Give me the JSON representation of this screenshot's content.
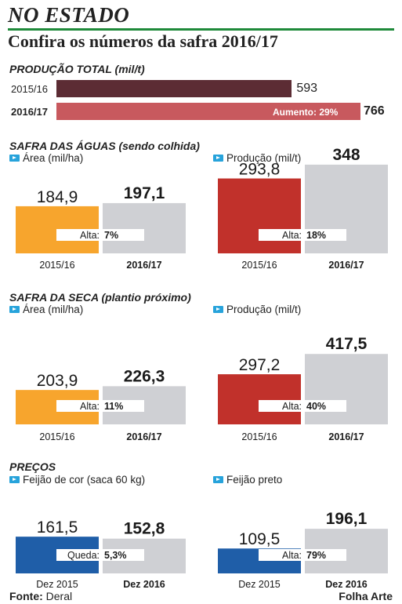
{
  "header": {
    "title": "NO ESTADO",
    "subtitle": "Confira os números da safra 2016/17"
  },
  "colors": {
    "dark_bar": "#5c2c34",
    "red_bar": "#c8595e",
    "orange": "#f7a52d",
    "red": "#c1312b",
    "blue": "#1f5ea8",
    "gray": "#cfd0d4",
    "green_rule": "#1f8a3a",
    "legend_icon": "#27a3db"
  },
  "footer": {
    "source_label": "Fonte:",
    "source_value": "Deral",
    "credit": "Folha Arte"
  },
  "chart_data": [
    {
      "type": "bar",
      "orientation": "horizontal",
      "title": "PRODUÇÃO TOTAL (mil/t)",
      "categories": [
        "2015/16",
        "2016/17"
      ],
      "values": [
        593,
        766
      ],
      "value_labels": [
        "593",
        "766"
      ],
      "annotation": "Aumento: 29%"
    },
    {
      "section_title": "SAFRA DAS ÁGUAS (sendo colhida)",
      "panels": [
        {
          "type": "bar",
          "legend": "Área (mil/ha)",
          "categories": [
            "2015/16",
            "2016/17"
          ],
          "values": [
            184.9,
            197.1
          ],
          "value_labels": [
            "184,9",
            "197,1"
          ],
          "annotation_label": "Alta:",
          "annotation_value": "7%",
          "first_color": "orange"
        },
        {
          "type": "bar",
          "legend": "Produção (mil/t)",
          "categories": [
            "2015/16",
            "2016/17"
          ],
          "values": [
            293.8,
            348
          ],
          "value_labels": [
            "293,8",
            "348"
          ],
          "annotation_label": "Alta:",
          "annotation_value": "18%",
          "first_color": "red"
        }
      ]
    },
    {
      "section_title": "SAFRA DA SECA (plantio próximo)",
      "panels": [
        {
          "type": "bar",
          "legend": "Área (mil/ha)",
          "categories": [
            "2015/16",
            "2016/17"
          ],
          "values": [
            203.9,
            226.3
          ],
          "value_labels": [
            "203,9",
            "226,3"
          ],
          "annotation_label": "Alta:",
          "annotation_value": "11%",
          "first_color": "orange"
        },
        {
          "type": "bar",
          "legend": "Produção (mil/t)",
          "categories": [
            "2015/16",
            "2016/17"
          ],
          "values": [
            297.2,
            417.5
          ],
          "value_labels": [
            "297,2",
            "417,5"
          ],
          "annotation_label": "Alta:",
          "annotation_value": "40%",
          "first_color": "red"
        }
      ]
    },
    {
      "section_title": "PREÇOS",
      "panels": [
        {
          "type": "bar",
          "legend": "Feijão de cor (saca 60 kg)",
          "categories": [
            "Dez 2015",
            "Dez 2016"
          ],
          "values": [
            161.5,
            152.8
          ],
          "value_labels": [
            "161,5",
            "152,8"
          ],
          "annotation_label": "Queda:",
          "annotation_value": "5,3%",
          "first_color": "blue"
        },
        {
          "type": "bar",
          "legend": "Feijão preto",
          "categories": [
            "Dez 2015",
            "Dez 2016"
          ],
          "values": [
            109.5,
            196.1
          ],
          "value_labels": [
            "109,5",
            "196,1"
          ],
          "annotation_label": "Alta:",
          "annotation_value": "79%",
          "first_color": "blue"
        }
      ]
    }
  ]
}
